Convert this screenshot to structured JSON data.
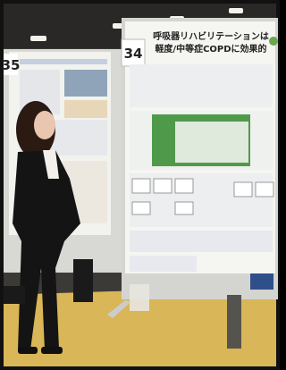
{
  "posters": [
    {
      "number": "35"
    },
    {
      "number": "34",
      "title_lines": [
        "呼吸器リハビリテーションは",
        "軽度/中等症COPDに効果的"
      ]
    }
  ]
}
